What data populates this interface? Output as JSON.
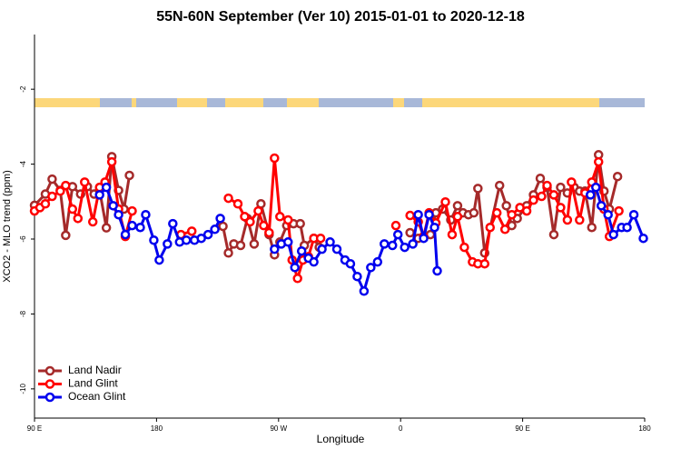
{
  "chart_data": {
    "type": "line",
    "title": "55N-60N September (Ver 10)   2015-01-01 to 2020-12-18",
    "x_label": "Longitude",
    "y_label": "XCO2 - MLO trend (ppm)",
    "xlim": [
      90,
      540
    ],
    "ylim": [
      -10.78,
      -0.54
    ],
    "xticks": [
      {
        "value": 90,
        "label": "90 E"
      },
      180,
      {
        "value": 270,
        "label": "90 W"
      },
      {
        "value": 360,
        "label": "0"
      },
      {
        "value": 450,
        "label": "90 E"
      },
      {
        "value": 540,
        "label": "180"
      }
    ],
    "yticks": [
      -2,
      -4,
      -6,
      -8,
      -10
    ],
    "legend": "lower left",
    "series": [
      {
        "name": "Land Nadir",
        "color": "#a52a2a",
        "x": [
          90,
          98,
          103,
          109,
          113,
          118,
          124,
          129,
          134,
          138,
          143,
          147,
          152,
          156,
          160,
          null,
          229,
          233,
          237,
          242,
          247,
          252,
          257,
          263,
          267,
          271,
          276,
          281,
          286,
          289,
          296,
          300,
          null,
          367,
          373,
          377,
          382,
          386,
          391,
          397,
          402,
          406,
          410,
          414,
          417,
          422,
          433,
          438,
          442,
          446,
          453,
          458,
          463,
          468,
          473,
          478,
          483,
          488,
          492,
          496,
          501,
          506,
          510,
          514,
          520
        ],
        "values": [
          -5.1,
          -4.8,
          -4.4,
          -4.7,
          -5.9,
          -4.6,
          -4.8,
          -4.6,
          -4.8,
          -4.7,
          -5.7,
          -3.8,
          -4.7,
          -5.2,
          -4.3,
          null,
          -5.66,
          -6.37,
          -6.13,
          -6.17,
          -5.45,
          -6.13,
          -5.06,
          -5.88,
          -6.42,
          -6.08,
          -5.64,
          -5.59,
          -5.59,
          -6.17,
          -5.98,
          -6.22,
          null,
          -5.83,
          -5.98,
          -5.93,
          -5.88,
          -5.3,
          -5.2,
          -5.49,
          -5.11,
          -5.3,
          -5.35,
          -5.3,
          -4.65,
          -6.37,
          -4.57,
          -5.11,
          -5.64,
          -5.45,
          -5.11,
          -4.82,
          -4.38,
          -4.62,
          -5.88,
          -4.62,
          -4.77,
          -4.62,
          -4.72,
          -4.72,
          -5.69,
          -3.75,
          -4.72,
          -5.2,
          -4.33
        ]
      },
      {
        "name": "Land Glint",
        "color": "#ff0000",
        "x": [
          90,
          94,
          98,
          103,
          109,
          113,
          118,
          122,
          127,
          133,
          138,
          142,
          147,
          152,
          157,
          162,
          null,
          198,
          206,
          null,
          233,
          240,
          245,
          249,
          255,
          259,
          263,
          267,
          271,
          277,
          280,
          284,
          288,
          292,
          296,
          301,
          null,
          356.5,
          null,
          367,
          373,
          377,
          381,
          386,
          393,
          398,
          402,
          407,
          413,
          417,
          422,
          426,
          431,
          437,
          442,
          448,
          453,
          458,
          464,
          468,
          473,
          478,
          483,
          486,
          492,
          496,
          501,
          506,
          510,
          514,
          521
        ],
        "values": [
          -5.25,
          -5.16,
          -5.06,
          -4.86,
          -4.72,
          -4.57,
          -5.2,
          -5.45,
          -4.48,
          -5.54,
          -4.62,
          -4.48,
          -3.94,
          -5.2,
          -5.93,
          -5.25,
          null,
          -5.88,
          -5.79,
          null,
          -4.91,
          -5.06,
          -5.4,
          -5.54,
          -5.25,
          -5.64,
          -5.83,
          -3.84,
          -5.4,
          -5.49,
          -6.56,
          -7.05,
          -6.56,
          -6.47,
          -5.98,
          -5.98,
          null,
          -5.64,
          null,
          -5.37,
          -5.54,
          -5.93,
          -5.3,
          -5.57,
          -5.01,
          -5.88,
          -5.4,
          -6.22,
          -6.61,
          -6.66,
          -6.66,
          -5.69,
          -5.3,
          -5.74,
          -5.35,
          -5.16,
          -5.25,
          -4.96,
          -4.86,
          -4.57,
          -4.82,
          -5.16,
          -5.49,
          -4.48,
          -5.49,
          -4.77,
          -4.48,
          -3.94,
          -5.2,
          -5.93,
          -5.25
        ]
      },
      {
        "name": "Ocean Glint",
        "color": "#0000ee",
        "x": [
          138,
          143,
          148,
          152,
          157,
          162,
          168,
          172,
          178,
          182,
          188,
          192,
          197,
          202,
          208,
          213,
          218,
          223,
          227,
          null,
          267,
          272,
          277,
          282,
          287,
          292,
          296,
          302,
          308,
          313,
          319,
          323,
          328,
          333,
          338,
          343,
          348,
          354,
          358,
          363,
          369,
          373,
          377,
          381,
          385,
          387,
          null,
          500,
          504,
          508,
          513,
          517,
          523,
          527,
          532,
          539
        ],
        "values": [
          -4.82,
          -4.62,
          -5.11,
          -5.35,
          -5.88,
          -5.64,
          -5.69,
          -5.35,
          -6.03,
          -6.56,
          -6.13,
          -5.59,
          -6.08,
          -6.03,
          -6.03,
          -5.98,
          -5.88,
          -5.74,
          -5.45,
          null,
          -6.27,
          -6.13,
          -6.08,
          -6.76,
          -6.32,
          -6.51,
          -6.61,
          -6.27,
          -6.08,
          -6.27,
          -6.56,
          -6.66,
          -7.0,
          -7.39,
          -6.76,
          -6.61,
          -6.13,
          -6.17,
          -5.88,
          -6.22,
          -6.13,
          -5.35,
          -5.98,
          -5.35,
          -5.69,
          -6.85,
          null,
          -4.82,
          -4.62,
          -5.11,
          -5.35,
          -5.88,
          -5.69,
          -5.69,
          -5.35,
          -5.98
        ]
      }
    ]
  }
}
